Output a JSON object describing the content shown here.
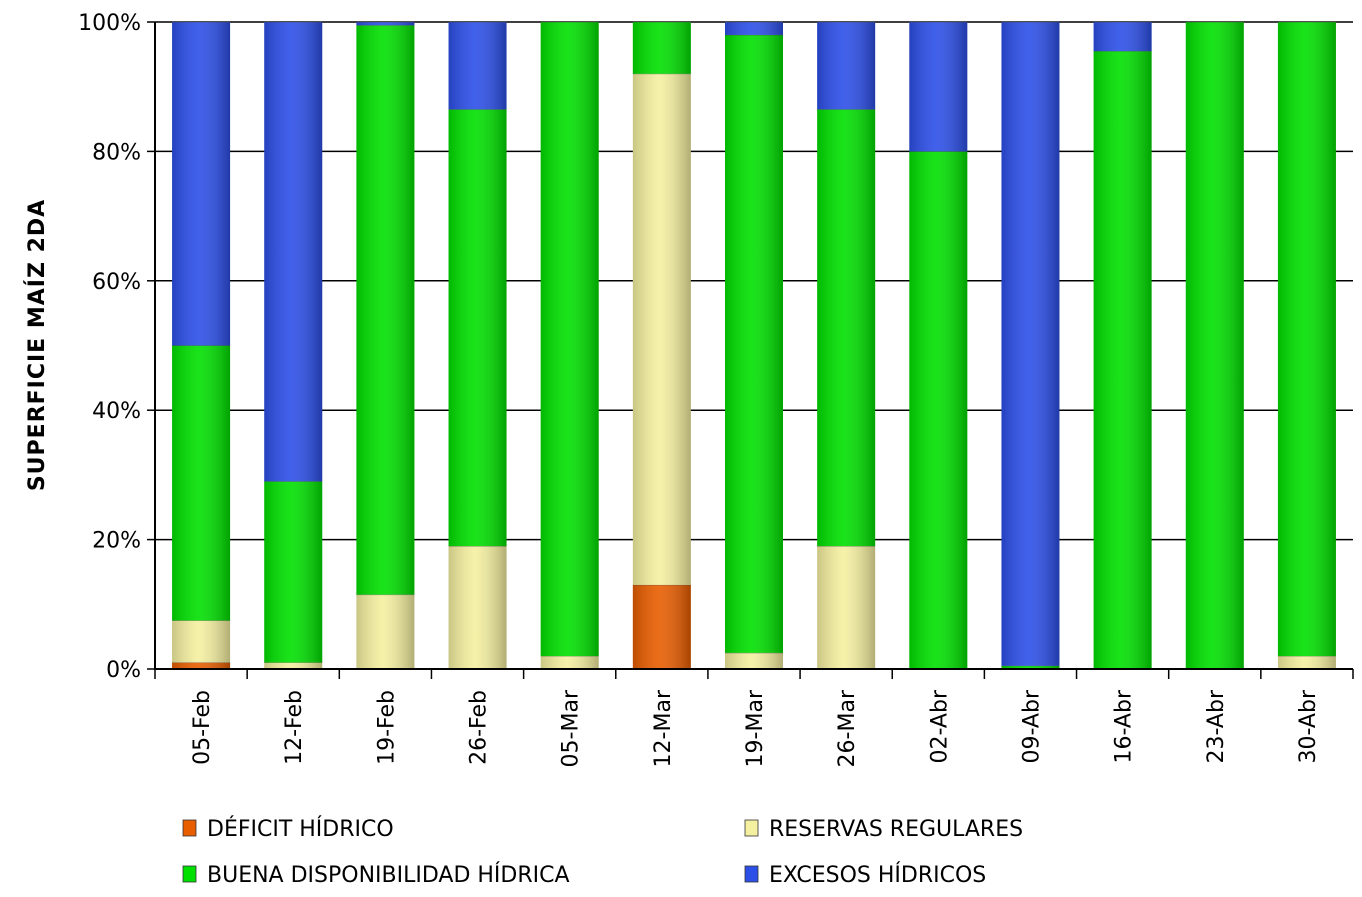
{
  "chart_data": {
    "type": "bar",
    "stacked": true,
    "normalized": true,
    "title": "",
    "xlabel": "",
    "ylabel": "SUPERFICIE MAÍZ 2DA",
    "ylim": [
      0,
      100
    ],
    "yticks": [
      "0%",
      "20%",
      "40%",
      "60%",
      "80%",
      "100%"
    ],
    "grid": true,
    "legend_position": "bottom",
    "categories": [
      "05-Feb",
      "12-Feb",
      "19-Feb",
      "26-Feb",
      "05-Mar",
      "12-Mar",
      "19-Mar",
      "26-Mar",
      "02-Abr",
      "09-Abr",
      "16-Abr",
      "23-Abr",
      "30-Abr"
    ],
    "series": [
      {
        "name": "DÉFICIT HÍDRICO",
        "color": "#e85d00",
        "values": [
          1,
          0,
          0,
          0,
          0,
          13,
          0,
          0,
          0,
          0,
          0,
          0,
          0
        ]
      },
      {
        "name": "RESERVAS REGULARES",
        "color": "#f5f0a0",
        "values": [
          6.5,
          1,
          11.5,
          19,
          2,
          79,
          2.5,
          19,
          0,
          0,
          0,
          0,
          2
        ]
      },
      {
        "name": "BUENA DISPONIBILIDAD HÍDRICA",
        "color": "#00e000",
        "values": [
          42.5,
          28,
          88,
          67.5,
          98,
          8,
          95.5,
          67.5,
          80,
          0.5,
          95.5,
          100,
          98
        ]
      },
      {
        "name": "EXCESOS HÍDRICOS",
        "color": "#2c4fe8",
        "values": [
          50,
          71,
          0.5,
          13.5,
          0,
          0,
          2,
          13.5,
          20,
          99.5,
          4.5,
          0,
          0
        ]
      }
    ]
  }
}
